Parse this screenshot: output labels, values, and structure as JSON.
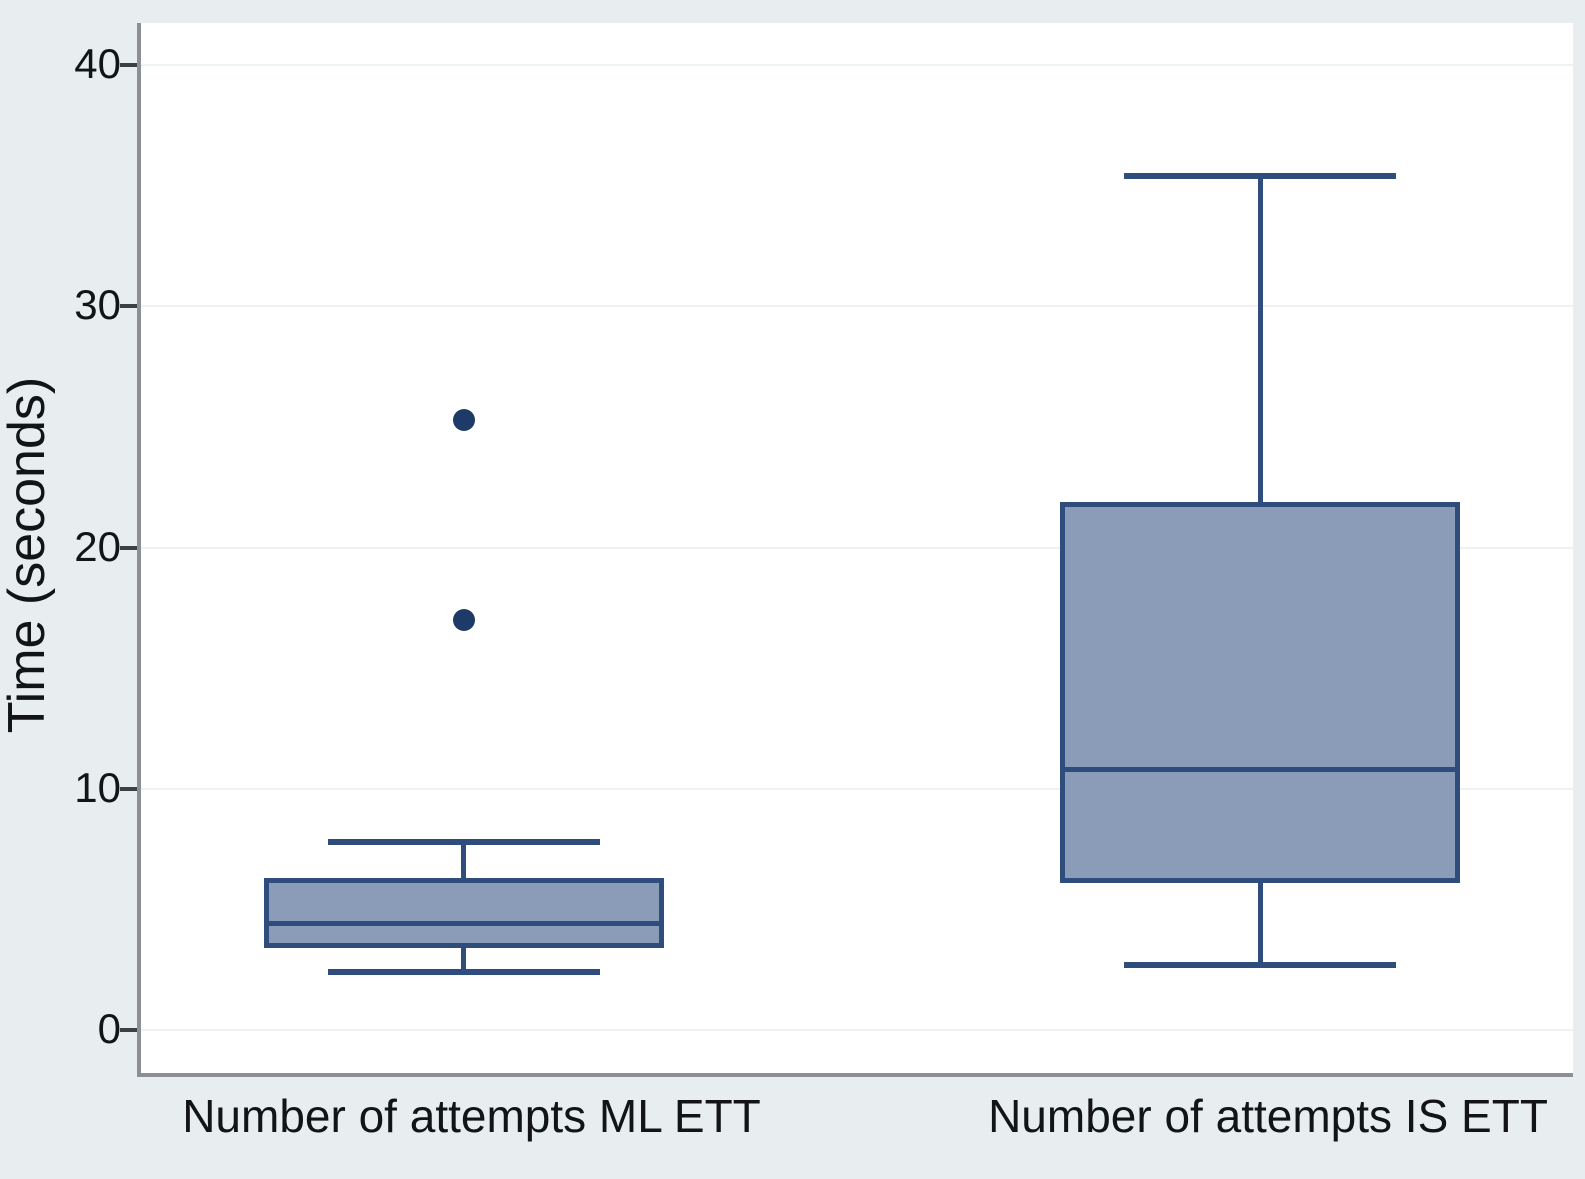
{
  "chart_data": {
    "type": "boxplot",
    "title": "",
    "ylabel": "Time (seconds)",
    "xlabel": "",
    "yticks": [
      0,
      10,
      20,
      30,
      40
    ],
    "ylim": [
      -1.78,
      41.74
    ],
    "grid": true,
    "legend_position": "none",
    "categories": [
      "Number of attempts ML ETT",
      "Number of attempts IS ETT"
    ],
    "series": [
      {
        "name": "Number of attempts ML ETT",
        "whisker_low": 2.4,
        "q1": 3.4,
        "median": 4.4,
        "q3": 6.3,
        "whisker_high": 7.8,
        "outliers": [
          17.0,
          25.3
        ]
      },
      {
        "name": "Number of attempts IS ETT",
        "whisker_low": 2.7,
        "q1": 6.1,
        "median": 10.8,
        "q3": 21.9,
        "whisker_high": 35.4,
        "outliers": []
      }
    ],
    "colors": {
      "outer_bg": "#e8eef0",
      "plot_bg": "#ffffff",
      "grid": "#edf2f2",
      "axis_line": "#8a9095",
      "tick_mark": "#3c4044",
      "text": "#121417",
      "box_fill": "#8b9cb8",
      "box_stroke": "#2e4d7c",
      "outlier": "#1d3a68"
    }
  }
}
